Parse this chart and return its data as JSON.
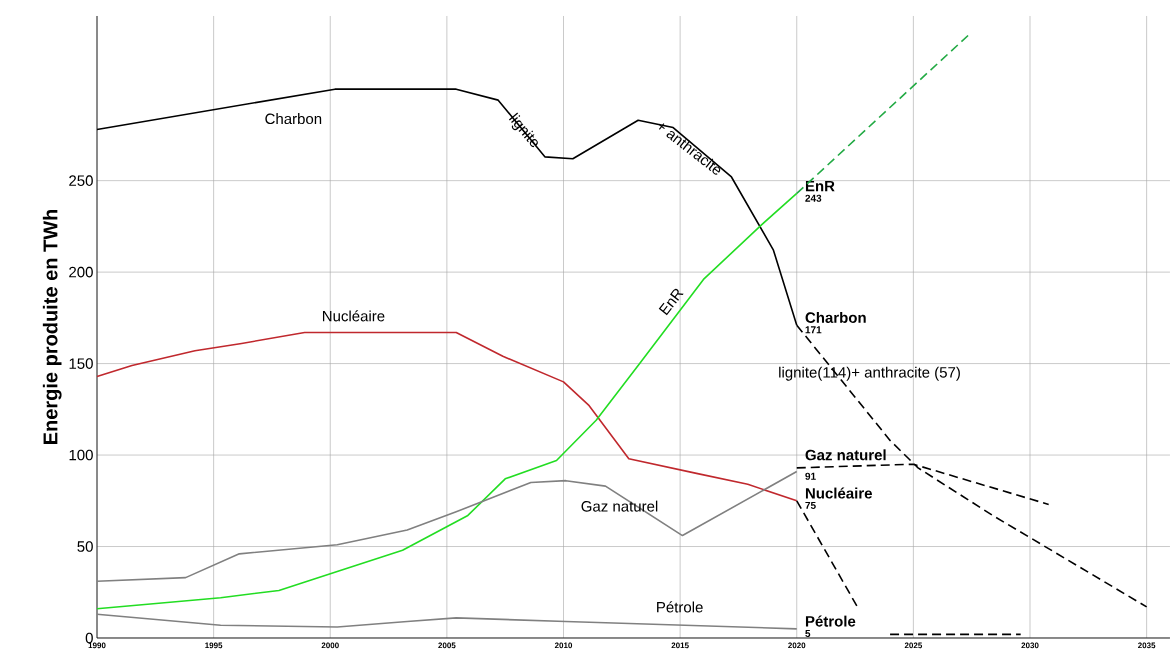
{
  "chart_data": {
    "type": "line",
    "ylabel": "Energie produite en TWh",
    "xlim": [
      1990,
      2036
    ],
    "ylim": [
      0,
      340
    ],
    "xticks": [
      1990,
      1995,
      2000,
      2005,
      2010,
      2015,
      2020,
      2025,
      2030,
      2035
    ],
    "yticks": [
      0,
      50,
      100,
      150,
      200,
      250
    ],
    "grid": true,
    "series": [
      {
        "name": "Charbon",
        "color": "#000000",
        "x": [
          1990,
          2000.2,
          2005.4,
          2007.2,
          2009.2,
          2010.4,
          2013.2,
          2014.7,
          2017.2,
          2019,
          2020
        ],
        "values": [
          278,
          300,
          300,
          294,
          263,
          262,
          283,
          279,
          252,
          212,
          171
        ],
        "value_labels": [
          null,
          null,
          null,
          null,
          null,
          null,
          null,
          null,
          null,
          null,
          "171"
        ]
      },
      {
        "name": "Nucléaire",
        "color": "#c0282d",
        "x": [
          1990,
          1991.5,
          1994.2,
          1996.2,
          1998.9,
          2000.4,
          2005.4,
          2007.4,
          2010,
          2011.1,
          2012.8,
          2015.7,
          2017.9,
          2020
        ],
        "values": [
          143,
          149,
          157,
          161,
          167,
          167,
          167,
          154,
          140,
          127,
          98,
          90,
          84,
          75
        ],
        "value_labels": [
          null,
          null,
          null,
          null,
          null,
          null,
          null,
          null,
          null,
          null,
          null,
          null,
          null,
          "75"
        ]
      },
      {
        "name": "EnR",
        "color": "#22dd22",
        "x": [
          1990,
          1995.3,
          1997.8,
          2000.2,
          2003.1,
          2005.9,
          2007.5,
          2009.7,
          2011.4,
          2013.2,
          2016,
          2018.5,
          2020
        ],
        "values": [
          16,
          22,
          26,
          36,
          48,
          67,
          87,
          97,
          119,
          149,
          196,
          226,
          243
        ],
        "value_labels": [
          null,
          null,
          null,
          null,
          null,
          null,
          null,
          null,
          null,
          null,
          null,
          null,
          "243"
        ]
      },
      {
        "name": "Gaz naturel",
        "color": "#808080",
        "x": [
          1990,
          1993.8,
          1996.1,
          2000.3,
          2003.3,
          2005.4,
          2008.6,
          2010.1,
          2011.8,
          2015.1,
          2020
        ],
        "values": [
          31,
          33,
          46,
          51,
          59,
          69,
          85,
          86,
          83,
          56,
          91
        ],
        "value_labels": [
          null,
          null,
          null,
          null,
          null,
          null,
          null,
          null,
          null,
          null,
          "91"
        ]
      },
      {
        "name": "Pétrole",
        "color": "#808080",
        "x": [
          1990,
          1995.3,
          2000.3,
          2003.3,
          2005.4,
          2010.1,
          2020
        ],
        "values": [
          13,
          7,
          6,
          9,
          11,
          9,
          5
        ],
        "value_labels": [
          null,
          null,
          null,
          null,
          null,
          null,
          "5"
        ]
      },
      {
        "color": "#22aa44",
        "line_style": "dashed",
        "x": [
          2020,
          2027.4
        ],
        "values": [
          243,
          330
        ]
      },
      {
        "color": "#000000",
        "line_style": "dashed",
        "x": [
          2020,
          2024,
          2025.2,
          2028.4,
          2035
        ],
        "values": [
          171,
          108,
          93,
          67,
          17
        ]
      },
      {
        "color": "#000000",
        "line_style": "dashed",
        "x": [
          2020,
          2025,
          2030.8
        ],
        "values": [
          93,
          95,
          73
        ]
      },
      {
        "color": "#000000",
        "line_style": "dashed",
        "x": [
          2020,
          2022.6
        ],
        "values": [
          75,
          17
        ]
      },
      {
        "color": "#000000",
        "line_style": "dashed",
        "x": [
          2024,
          2029.6
        ],
        "values": [
          2,
          2
        ]
      }
    ],
    "annotations": [
      "Charbon",
      {
        "text": "lignite",
        "x": 2008.3,
        "y": 277
      },
      {
        "text": "+ anthracite",
        "x": 2015.4,
        "y": 268
      },
      "Nucléaire",
      "EnR",
      "Gaz naturel",
      "Pétrole",
      "lignite(114)+ anthracite (57)"
    ]
  }
}
